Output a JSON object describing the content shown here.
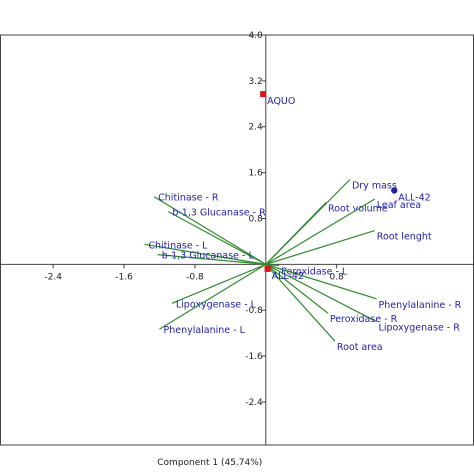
{
  "chart_data": {
    "type": "scatter",
    "title": "",
    "xlabel": "Component 1 (45.74%)",
    "ylabel": "",
    "xlim": [
      -3.0,
      2.35
    ],
    "ylim": [
      -3.15,
      4.0
    ],
    "x_ticks": [
      {
        "value": -2.4,
        "label": "-2.4"
      },
      {
        "value": -1.6,
        "label": "-1.6"
      },
      {
        "value": -0.8,
        "label": "-0.8"
      },
      {
        "value": 0.8,
        "label": "0.8"
      }
    ],
    "y_ticks": [
      {
        "value": 4.0,
        "label": "4.0"
      },
      {
        "value": 3.2,
        "label": "3.2"
      },
      {
        "value": 2.4,
        "label": "2.4"
      },
      {
        "value": 1.6,
        "label": "1.6"
      },
      {
        "value": 0.8,
        "label": "0.8"
      },
      {
        "value": -0.8,
        "label": "-0.8"
      },
      {
        "value": -1.6,
        "label": "-1.6"
      },
      {
        "value": -2.4,
        "label": "-2.4"
      }
    ],
    "grid": false,
    "samples": [
      {
        "label": "AQUO",
        "x": -0.03,
        "y": 2.97,
        "color": "#e0141c",
        "marker": "square"
      },
      {
        "label": "ALL-42",
        "x": 0.02,
        "y": -0.08,
        "color": "#e0141c",
        "marker": "square"
      },
      {
        "label": "ALL-42",
        "x": 1.45,
        "y": 1.29,
        "color": "#1f1fa8",
        "marker": "circle"
      }
    ],
    "vectors": [
      {
        "label": "Chitinase - R",
        "x": -1.26,
        "y": 1.18
      },
      {
        "label": "b-1,3 Glucanase - R",
        "x": -1.1,
        "y": 0.92
      },
      {
        "label": "Chitinase - L",
        "x": -1.37,
        "y": 0.35
      },
      {
        "label": "b-1,3 Glucanase - L",
        "x": -1.22,
        "y": 0.17
      },
      {
        "label": "Lipoxygenase - L",
        "x": -1.06,
        "y": -0.68
      },
      {
        "label": "Phenylalanine - L",
        "x": -1.2,
        "y": -1.13
      },
      {
        "label": "Dry mass",
        "x": 0.95,
        "y": 1.48
      },
      {
        "label": "Root volume",
        "x": 0.68,
        "y": 1.08
      },
      {
        "label": "Leaf area",
        "x": 1.23,
        "y": 1.14
      },
      {
        "label": "Root lenght",
        "x": 1.23,
        "y": 0.59
      },
      {
        "label": "Peroxidase - L",
        "x": 0.15,
        "y": -0.02
      },
      {
        "label": "Phenylalanine - R",
        "x": 1.25,
        "y": -0.6
      },
      {
        "label": "Lipoxygenase - R",
        "x": 1.25,
        "y": -1.0
      },
      {
        "label": "Peroxidase - R",
        "x": 0.7,
        "y": -0.85
      },
      {
        "label": "Root area",
        "x": 0.78,
        "y": -1.34
      }
    ],
    "colors": {
      "vector": "#2e8b2e",
      "label": "#1f1fa8",
      "axis": "#444444",
      "sample_red": "#e0141c",
      "sample_blue": "#1f1fa8"
    }
  }
}
